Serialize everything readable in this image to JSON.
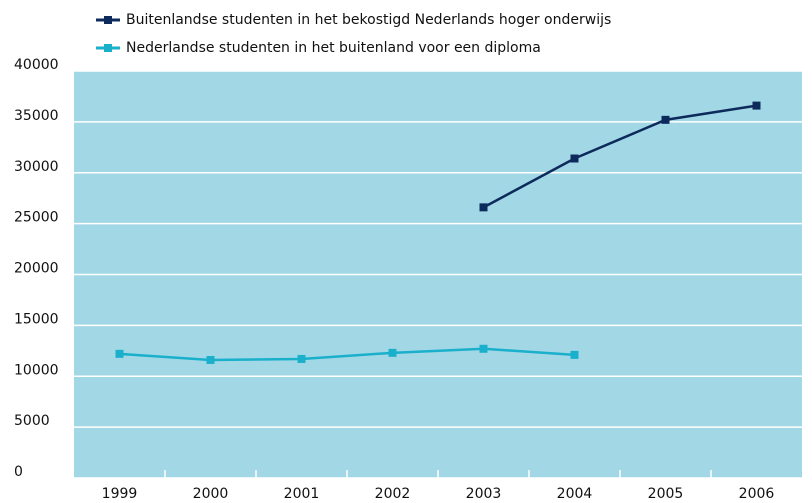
{
  "chart_data": {
    "type": "line",
    "categories": [
      "1999",
      "2000",
      "2001",
      "2002",
      "2003",
      "2004",
      "2005",
      "2006"
    ],
    "series": [
      {
        "name": "Buitenlandse studenten in het bekostigd Nederlands hoger onderwijs",
        "color": "#0d2a5c",
        "values": [
          null,
          null,
          null,
          null,
          26600,
          31400,
          35200,
          36600
        ]
      },
      {
        "name": "Nederlandse studenten in het buitenland voor een diploma",
        "color": "#1ab0cc",
        "values": [
          12200,
          11600,
          11700,
          12300,
          12700,
          12100,
          null,
          null
        ]
      }
    ],
    "ylim": [
      0,
      40000
    ],
    "yticks": [
      0,
      5000,
      10000,
      15000,
      20000,
      25000,
      30000,
      35000,
      40000
    ],
    "grid": true,
    "plot_background": "#a2d8e6",
    "legend": "top-left"
  }
}
